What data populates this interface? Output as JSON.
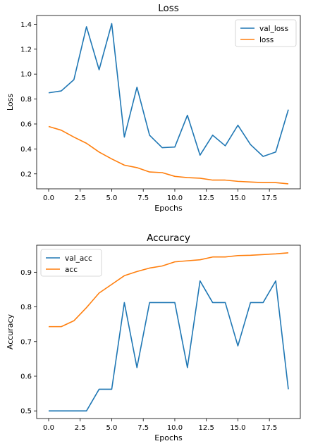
{
  "chart_data": [
    {
      "type": "line",
      "title": "Loss",
      "xlabel": "Epochs",
      "ylabel": "Loss",
      "xlim": [
        -0.95,
        19.95
      ],
      "ylim": [
        0.08,
        1.47
      ],
      "xticks": [
        0.0,
        2.5,
        5.0,
        7.5,
        10.0,
        12.5,
        15.0,
        17.5
      ],
      "xtick_labels": [
        "0.0",
        "2.5",
        "5.0",
        "7.5",
        "10.0",
        "12.5",
        "15.0",
        "17.5"
      ],
      "yticks": [
        0.2,
        0.4,
        0.6,
        0.8,
        1.0,
        1.2,
        1.4
      ],
      "ytick_labels": [
        "0.2",
        "0.4",
        "0.6",
        "0.8",
        "1.0",
        "1.2",
        "1.4"
      ],
      "grid": false,
      "legend_position": "top-right",
      "x": [
        0,
        1,
        2,
        3,
        4,
        5,
        6,
        7,
        8,
        9,
        10,
        11,
        12,
        13,
        14,
        15,
        16,
        17,
        18,
        19
      ],
      "series": [
        {
          "name": "val_loss",
          "color": "#1f77b4",
          "values": [
            0.85,
            0.865,
            0.955,
            1.38,
            1.035,
            1.405,
            0.495,
            0.895,
            0.51,
            0.41,
            0.415,
            0.67,
            0.35,
            0.51,
            0.425,
            0.59,
            0.435,
            0.34,
            0.375,
            0.715
          ]
        },
        {
          "name": "loss",
          "color": "#ff7f0e",
          "values": [
            0.58,
            0.55,
            0.495,
            0.445,
            0.375,
            0.32,
            0.27,
            0.25,
            0.215,
            0.21,
            0.18,
            0.17,
            0.165,
            0.15,
            0.15,
            0.14,
            0.135,
            0.13,
            0.13,
            0.12
          ]
        }
      ]
    },
    {
      "type": "line",
      "title": "Accuracy",
      "xlabel": "Epochs",
      "ylabel": "Accuracy",
      "xlim": [
        -0.95,
        19.95
      ],
      "ylim": [
        0.478,
        0.978
      ],
      "xticks": [
        0.0,
        2.5,
        5.0,
        7.5,
        10.0,
        12.5,
        15.0,
        17.5
      ],
      "xtick_labels": [
        "0.0",
        "2.5",
        "5.0",
        "7.5",
        "10.0",
        "12.5",
        "15.0",
        "17.5"
      ],
      "yticks": [
        0.5,
        0.6,
        0.7,
        0.8,
        0.9
      ],
      "ytick_labels": [
        "0.5",
        "0.6",
        "0.7",
        "0.8",
        "0.9"
      ],
      "grid": false,
      "legend_position": "top-left",
      "x": [
        0,
        1,
        2,
        3,
        4,
        5,
        6,
        7,
        8,
        9,
        10,
        11,
        12,
        13,
        14,
        15,
        16,
        17,
        18,
        19
      ],
      "series": [
        {
          "name": "val_acc",
          "color": "#1f77b4",
          "values": [
            0.5,
            0.5,
            0.5,
            0.5,
            0.5625,
            0.5625,
            0.8125,
            0.625,
            0.8125,
            0.8125,
            0.8125,
            0.625,
            0.875,
            0.8125,
            0.8125,
            0.6875,
            0.8125,
            0.8125,
            0.875,
            0.5625
          ]
        },
        {
          "name": "acc",
          "color": "#ff7f0e",
          "values": [
            0.743,
            0.743,
            0.76,
            0.798,
            0.84,
            0.865,
            0.89,
            0.902,
            0.912,
            0.918,
            0.93,
            0.933,
            0.936,
            0.944,
            0.944,
            0.948,
            0.949,
            0.951,
            0.953,
            0.956
          ]
        }
      ]
    }
  ]
}
